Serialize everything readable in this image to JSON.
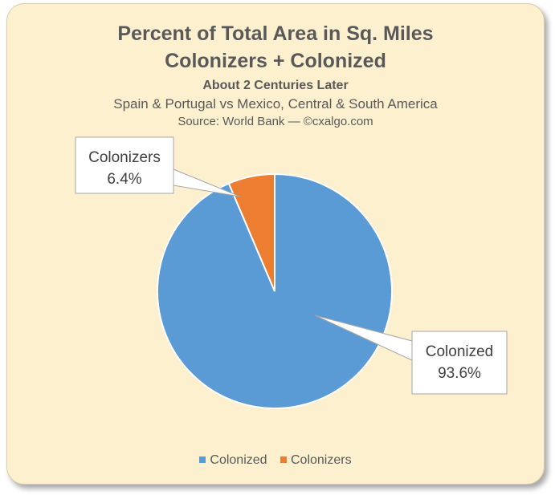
{
  "chart_data": {
    "type": "pie",
    "title": "Percent of Total Area in Sq. Miles",
    "title_line2": "Colonizers + Colonized",
    "subtitle": "About 2 Centuries Later",
    "subtitle2": "Spain & Portugal vs Mexico, Central & South America",
    "source": "Source: World Bank — ©cxalgo.com",
    "slices": [
      {
        "name": "Colonized",
        "value": 93.6,
        "label": "93.6%",
        "color": "#5b9bd5"
      },
      {
        "name": "Colonizers",
        "value": 6.4,
        "label": "6.4%",
        "color": "#ed7d31"
      }
    ],
    "legend": {
      "position": "bottom"
    }
  }
}
